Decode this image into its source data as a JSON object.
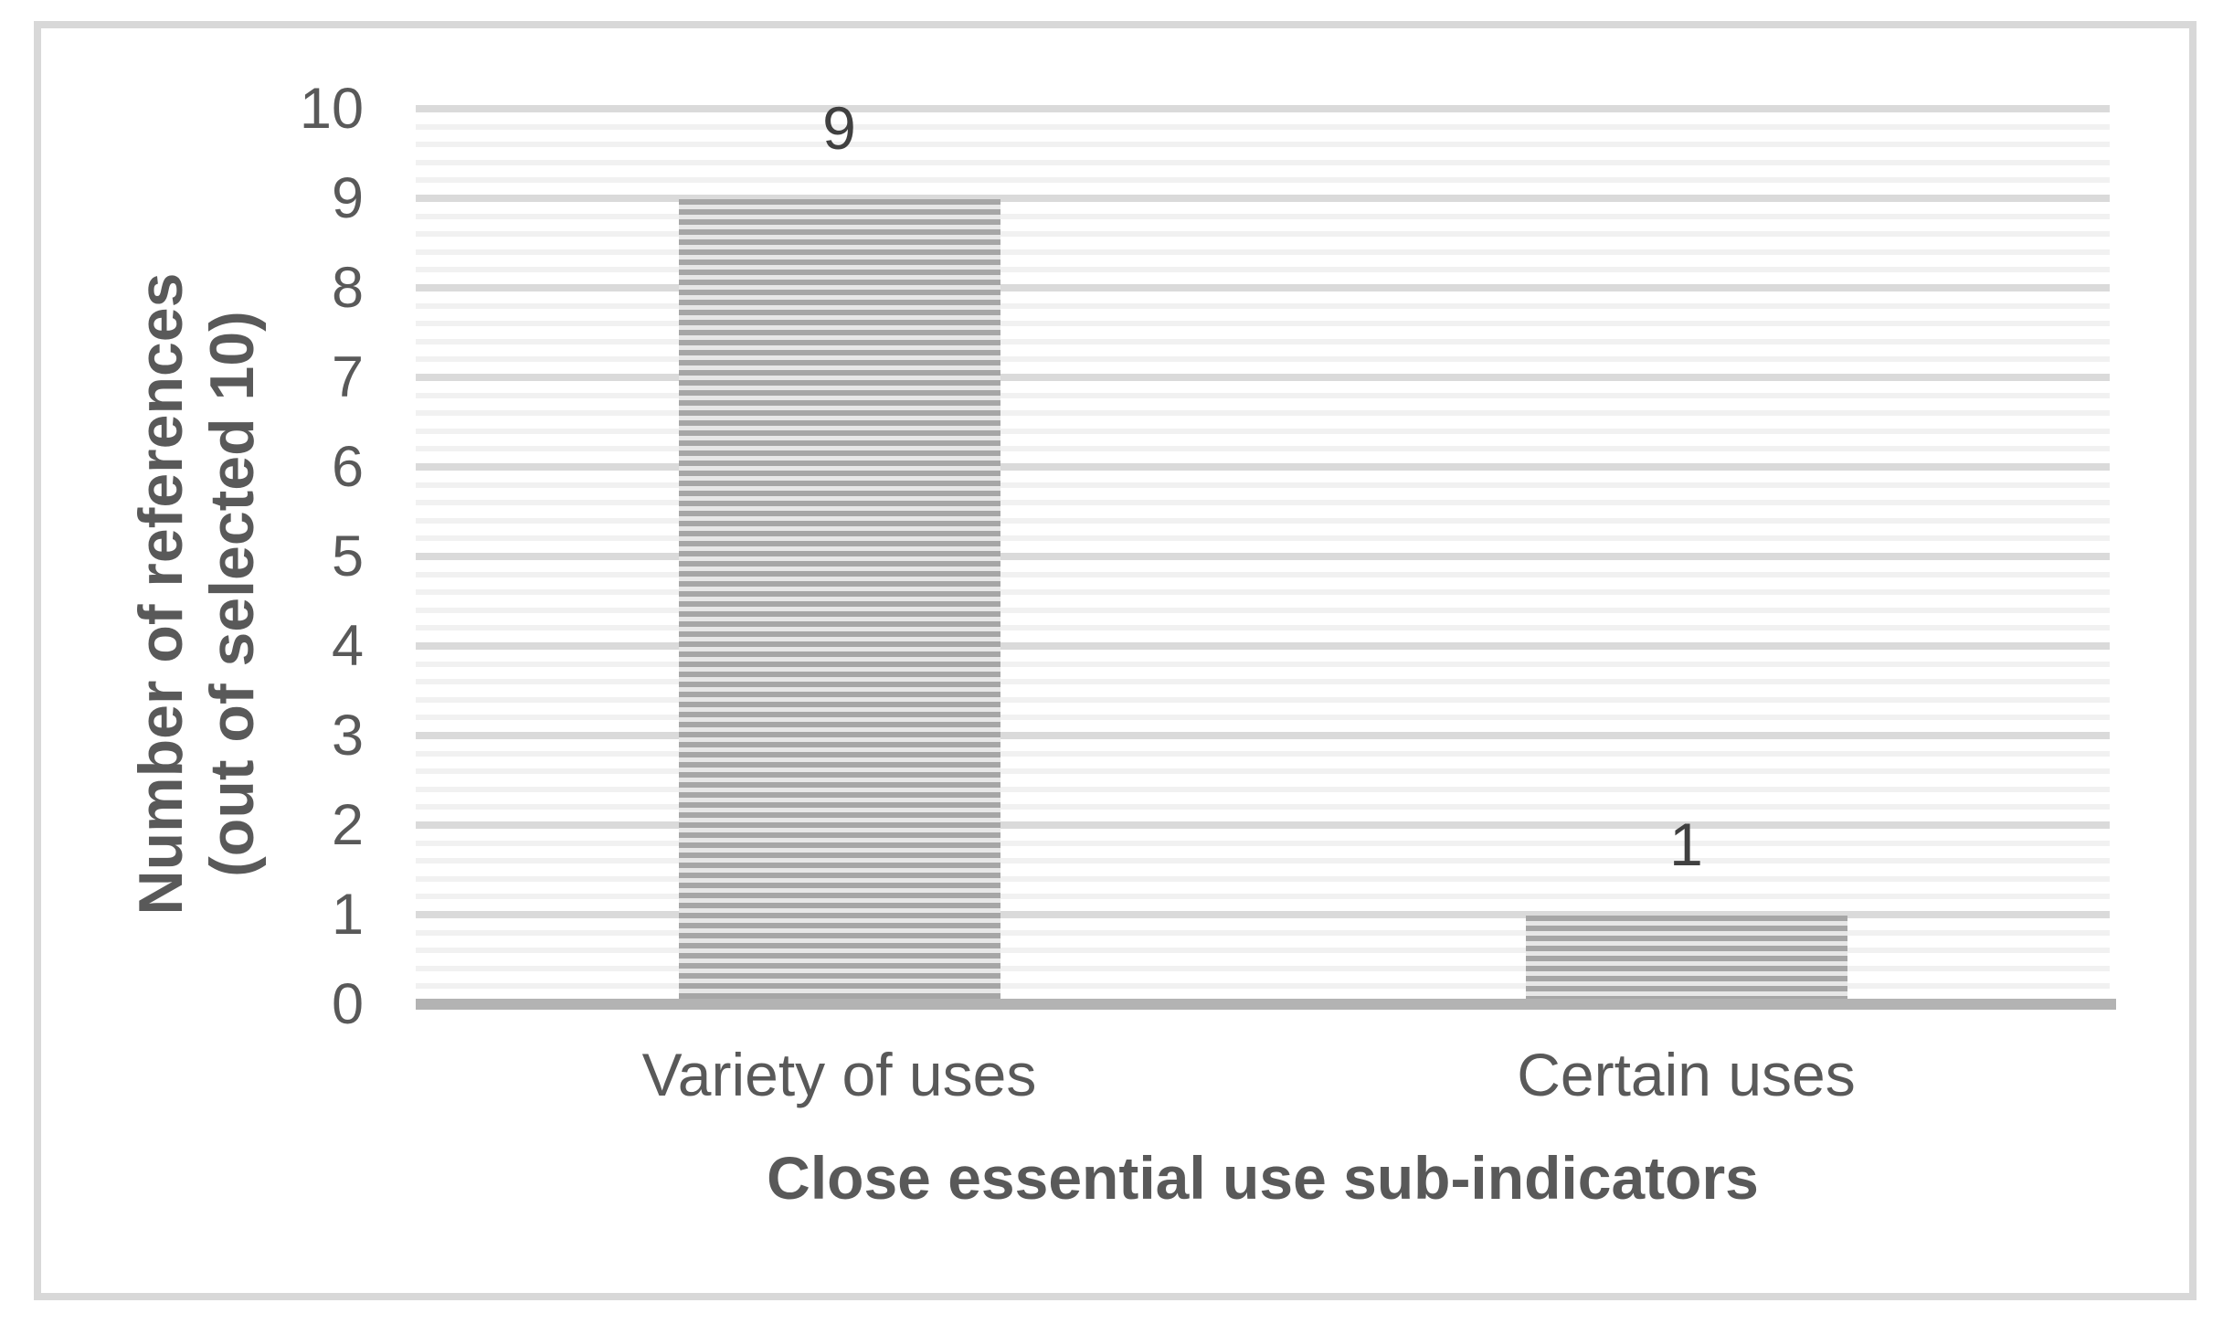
{
  "chart_data": {
    "type": "bar",
    "title": "",
    "categories": [
      "Variety of uses",
      "Certain uses"
    ],
    "values": [
      9,
      1
    ],
    "data_labels": [
      "9",
      "1"
    ],
    "xlabel": "Close essential use sub-indicators",
    "ylabel_lines": [
      "Number of references",
      "(out of selected 10)"
    ],
    "ylim": [
      0,
      10
    ],
    "yticks": [
      "0",
      "1",
      "2",
      "3",
      "4",
      "5",
      "6",
      "7",
      "8",
      "9",
      "10"
    ],
    "major_unit": 1,
    "minor_unit": 0.2,
    "grid": "major-and-minor-horizontal",
    "legend": "none",
    "bar_fill_pattern": "horizontal-stripes",
    "colors": {
      "frame_border": "#d8d8d8",
      "major_gridline": "#dadada",
      "minor_gridline": "#f1f1f1",
      "axis_line": "#b3b3b3",
      "bar_stripe_dark": "#a6a6a6",
      "bar_stripe_light": "#e7e7e7",
      "axis_text": "#595959",
      "data_label_text": "#404040",
      "background": "#ffffff"
    }
  }
}
